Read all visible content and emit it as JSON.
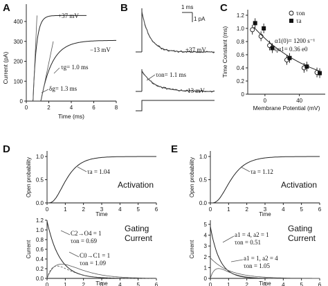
{
  "panels": {
    "A": {
      "label": "A",
      "ylabel": "Current (pA)",
      "xlabel": "Time (ms)",
      "yticks": [
        "0",
        "100",
        "200",
        "300",
        "400"
      ],
      "xticks": [
        "0",
        "2",
        "4",
        "6",
        "8"
      ],
      "ann_p37": "+37 mV",
      "ann_m13": "−13 mV",
      "ann_tau": "τg= 1.0 ms",
      "ann_delta": "δg= 1.3 ms"
    },
    "B": {
      "label": "B",
      "scale_time": "1 ms",
      "scale_current": "1 pA",
      "ann_p37": "+37 mV",
      "ann_m13": "−13 mV",
      "ann_tau": "τon= 1.1 ms"
    },
    "C": {
      "label": "C",
      "ylabel": "Time Constant (ms)",
      "xlabel": "Membrane Potential (mV)",
      "yticks": [
        "0",
        "0.2",
        "0.4",
        "0.6",
        "0.8",
        "1.0",
        "1.2"
      ],
      "xticks": [
        "0",
        "40"
      ],
      "legend_on": "τon",
      "legend_a": "τa",
      "eq1": "α1(0)= 1200 s⁻¹",
      "eq2": "qα1= 0.36 e0"
    },
    "D": {
      "label": "D",
      "top_ylabel": "Open probability",
      "top_xlabel": "Time",
      "top_title": "Activation",
      "top_ann": "τa = 1.04",
      "bot_ylabel": "Current",
      "bot_xlabel": "Time",
      "bot_title1": "Gating",
      "bot_title2": "Current",
      "ann1": "C2→O4 = 1",
      "ann2": "τon = 0.69",
      "ann3": "C0→C1 = 1",
      "ann4": "τon = 1.09",
      "top_yticks": [
        "0.0",
        "0.5",
        "1.0"
      ],
      "bot_yticks": [
        "0.0",
        "0.2",
        "0.4",
        "0.6",
        "0.8",
        "1.0",
        "1.2"
      ],
      "xticks": [
        "0",
        "1",
        "2",
        "3",
        "4",
        "5",
        "6"
      ]
    },
    "E": {
      "label": "E",
      "top_ylabel": "Open probability",
      "top_xlabel": "Time",
      "top_title": "Activation",
      "top_ann": "τa = 1.12",
      "bot_ylabel": "Current",
      "bot_xlabel": "Time",
      "bot_title1": "Gating",
      "bot_title2": "Current",
      "ann1": "a1 = 4, a2 = 1",
      "ann2": "τon = 0.51",
      "ann3": "a1 = 1, a2 = 4",
      "ann4": "τon = 1.05",
      "top_yticks": [
        "0.0",
        "0.5",
        "1.0"
      ],
      "bot_yticks": [
        "0",
        "1",
        "2",
        "3",
        "4",
        "5"
      ],
      "xticks": [
        "0",
        "1",
        "2",
        "3",
        "4",
        "5",
        "6"
      ]
    }
  },
  "chart_data": [
    {
      "type": "line",
      "panel": "A",
      "xlabel": "Time (ms)",
      "ylabel": "Current (pA)",
      "xlim": [
        0,
        8
      ],
      "ylim": [
        0,
        450
      ],
      "series": [
        {
          "name": "+37 mV",
          "tau_ms": 0.3,
          "delay_ms": 0.6,
          "plateau_pA": 430
        },
        {
          "name": "−13 mV",
          "tau_ms": 1.0,
          "delay_ms": 1.3,
          "plateau_pA": 305
        }
      ]
    },
    {
      "type": "scatter",
      "panel": "C",
      "xlabel": "Membrane Potential (mV)",
      "ylabel": "Time Constant (ms)",
      "xlim": [
        -20,
        70
      ],
      "ylim": [
        0,
        1.2
      ],
      "series": [
        {
          "name": "τon",
          "x": [
            -13,
            -3,
            7,
            27,
            47,
            62
          ],
          "y": [
            0.98,
            0.88,
            0.74,
            0.52,
            0.4,
            0.33
          ]
        },
        {
          "name": "τa",
          "x": [
            -13,
            -3,
            7,
            27,
            47,
            62
          ],
          "y": [
            1.08,
            1.0,
            0.7,
            0.55,
            0.42,
            0.32
          ]
        }
      ]
    },
    {
      "type": "line",
      "panel": "D-top",
      "xlabel": "Time",
      "ylabel": "Open probability",
      "xlim": [
        0,
        6
      ],
      "ylim": [
        0,
        1
      ],
      "series": [
        {
          "name": "τa = 1.04",
          "tau": 1.04
        }
      ]
    },
    {
      "type": "line",
      "panel": "D-bottom",
      "xlabel": "Time",
      "ylabel": "Current",
      "xlim": [
        0,
        6
      ],
      "ylim": [
        0,
        1.2
      ],
      "series": [
        {
          "name": "τon = 0.69",
          "tau": 0.69
        },
        {
          "name": "τon = 1.09",
          "tau": 1.09
        }
      ]
    },
    {
      "type": "line",
      "panel": "E-top",
      "xlabel": "Time",
      "ylabel": "Open probability",
      "xlim": [
        0,
        6
      ],
      "ylim": [
        0,
        1
      ],
      "series": [
        {
          "name": "τa = 1.12",
          "tau": 1.12
        }
      ]
    },
    {
      "type": "line",
      "panel": "E-bottom",
      "xlabel": "Time",
      "ylabel": "Current",
      "xlim": [
        0,
        6
      ],
      "ylim": [
        0,
        5
      ],
      "series": [
        {
          "name": "τon = 0.51",
          "tau": 0.51
        },
        {
          "name": "τon = 1.05",
          "tau": 1.05
        }
      ]
    }
  ]
}
